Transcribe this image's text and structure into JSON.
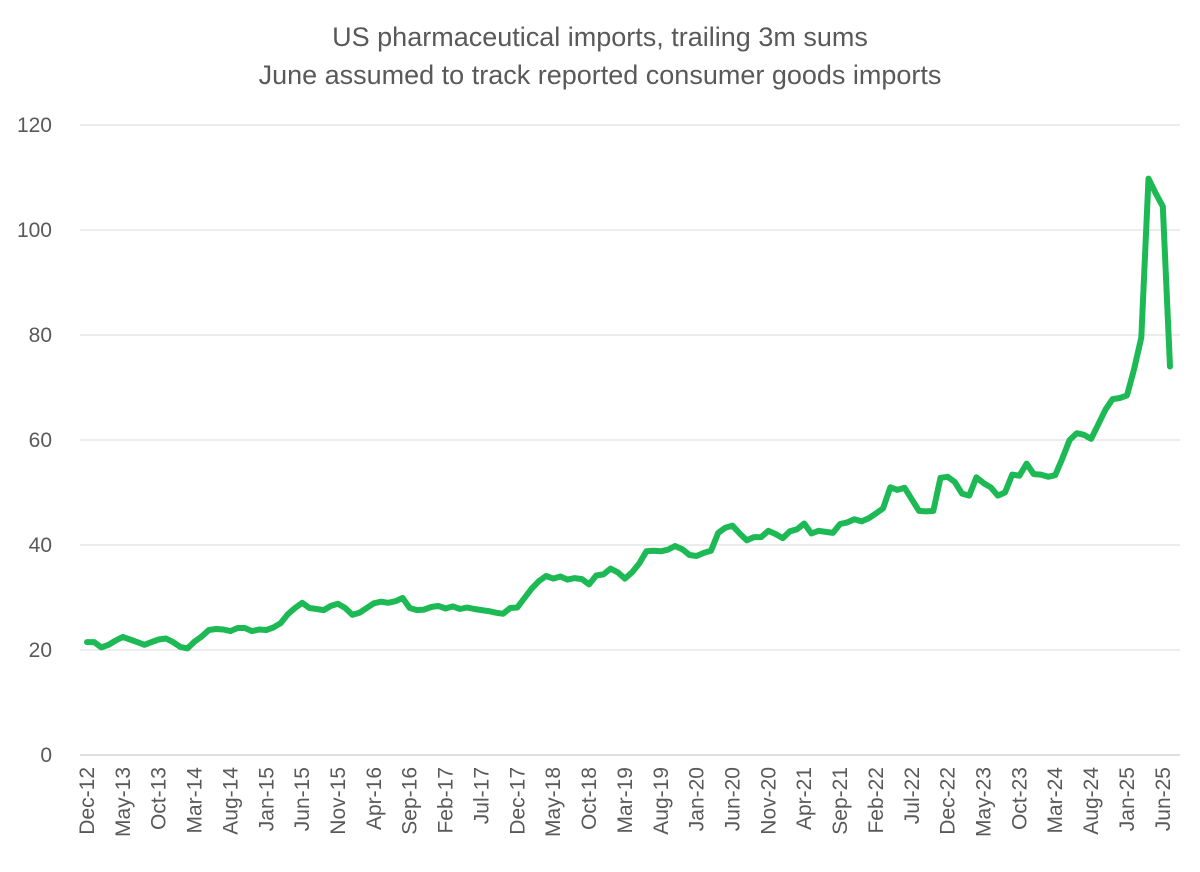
{
  "chart_data": {
    "type": "line",
    "title": "US pharmaceutical imports, trailing 3m sums",
    "subtitle": "June assumed to track reported consumer goods imports",
    "xlabel": "",
    "ylabel": "",
    "ylim": [
      0,
      120
    ],
    "yticks": [
      0,
      20,
      40,
      60,
      80,
      100,
      120
    ],
    "grid": true,
    "legend": "none",
    "line_color": "#1db954",
    "x_tick_labels": [
      "Dec-12",
      "May-13",
      "Oct-13",
      "Mar-14",
      "Aug-14",
      "Jan-15",
      "Jun-15",
      "Nov-15",
      "Apr-16",
      "Sep-16",
      "Feb-17",
      "Jul-17",
      "Dec-17",
      "May-18",
      "Oct-18",
      "Mar-19",
      "Aug-19",
      "Jan-20",
      "Jun-20",
      "Nov-20",
      "Apr-21",
      "Sep-21",
      "Feb-22",
      "Jul-22",
      "Dec-22",
      "May-23",
      "Oct-23",
      "Mar-24",
      "Aug-24",
      "Jan-25",
      "Jun-25"
    ],
    "x_start": "Dec-12",
    "x_end": "Jun-25",
    "values": [
      21.5,
      21.5,
      20.5,
      21.0,
      21.8,
      22.5,
      22.0,
      21.5,
      21.0,
      21.5,
      22.0,
      22.2,
      21.5,
      20.6,
      20.3,
      21.6,
      22.6,
      23.8,
      24.0,
      23.9,
      23.6,
      24.2,
      24.2,
      23.6,
      23.9,
      23.8,
      24.3,
      25.1,
      26.8,
      28.0,
      29.0,
      28.0,
      27.8,
      27.6,
      28.4,
      28.8,
      28.0,
      26.7,
      27.1,
      28.0,
      28.9,
      29.2,
      29.0,
      29.3,
      29.9,
      28.0,
      27.6,
      27.7,
      28.2,
      28.4,
      27.9,
      28.3,
      27.8,
      28.1,
      27.8,
      27.6,
      27.4,
      27.1,
      26.9,
      28.0,
      28.1,
      29.9,
      31.7,
      33.1,
      34.1,
      33.6,
      34.0,
      33.4,
      33.7,
      33.5,
      32.5,
      34.2,
      34.4,
      35.5,
      34.8,
      33.6,
      34.8,
      36.5,
      38.8,
      38.9,
      38.8,
      39.1,
      39.8,
      39.2,
      38.1,
      37.9,
      38.5,
      38.9,
      42.3,
      43.3,
      43.7,
      42.2,
      40.9,
      41.5,
      41.5,
      42.7,
      42.1,
      41.3,
      42.6,
      43.0,
      44.1,
      42.2,
      42.7,
      42.5,
      42.3,
      44.0,
      44.3,
      44.9,
      44.5,
      45.1,
      46.0,
      47.0,
      51.0,
      50.5,
      50.9,
      48.7,
      46.5,
      46.4,
      46.5,
      52.8,
      53.0,
      52.0,
      49.8,
      49.4,
      52.9,
      51.8,
      51.0,
      49.4,
      50.0,
      53.4,
      53.2,
      55.5,
      53.5,
      53.4,
      53.0,
      53.3,
      56.5,
      60.0,
      61.3,
      61.0,
      60.2,
      63.0,
      65.8,
      67.8,
      68.0,
      68.5,
      73.5,
      79.5,
      109.8,
      107.0,
      104.5,
      74.0
    ]
  }
}
